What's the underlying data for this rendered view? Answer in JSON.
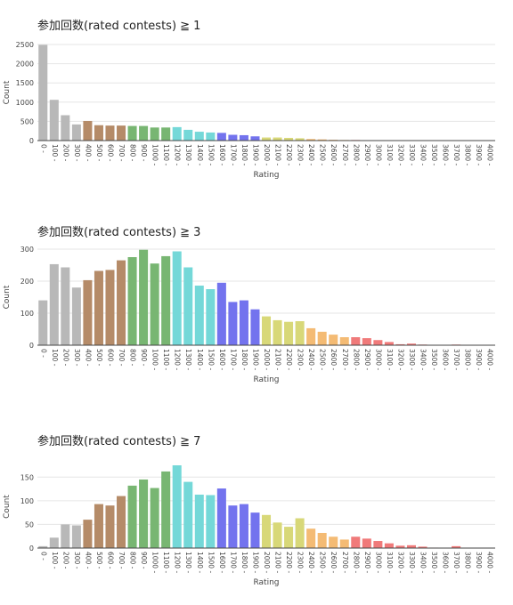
{
  "chart_data": [
    {
      "type": "bar",
      "title": "参加回数(rated contests) ≧ 1",
      "xlabel": "Rating",
      "ylabel": "Count",
      "ylim": [
        0,
        2500
      ],
      "yticks": [
        0,
        500,
        1000,
        1500,
        2000,
        2500
      ],
      "grid": true,
      "categories": [
        "0 -",
        "100 -",
        "200 -",
        "300 -",
        "400 -",
        "500 -",
        "600 -",
        "700 -",
        "800 -",
        "900 -",
        "1000 -",
        "1100 -",
        "1200 -",
        "1300 -",
        "1400 -",
        "1500 -",
        "1600 -",
        "1700 -",
        "1800 -",
        "1900 -",
        "2000 -",
        "2100 -",
        "2200 -",
        "2300 -",
        "2400 -",
        "2500 -",
        "2600 -",
        "2700 -",
        "2800 -",
        "2900 -",
        "3000 -",
        "3100 -",
        "3200 -",
        "3300 -",
        "3400 -",
        "3500 -",
        "3600 -",
        "3700 -",
        "3800 -",
        "3900 -",
        "4000 -"
      ],
      "values": [
        2490,
        1060,
        660,
        420,
        510,
        400,
        390,
        390,
        380,
        380,
        340,
        340,
        350,
        280,
        230,
        210,
        200,
        150,
        140,
        110,
        80,
        80,
        70,
        60,
        40,
        30,
        20,
        15,
        15,
        10,
        10,
        8,
        5,
        5,
        3,
        2,
        1,
        3,
        1,
        1,
        0
      ]
    },
    {
      "type": "bar",
      "title": "参加回数(rated contests) ≧ 3",
      "xlabel": "Rating",
      "ylabel": "Count",
      "ylim": [
        0,
        300
      ],
      "yticks": [
        0,
        100,
        200,
        300
      ],
      "grid": true,
      "categories": [
        "0 -",
        "100 -",
        "200 -",
        "300 -",
        "400 -",
        "500 -",
        "600 -",
        "700 -",
        "800 -",
        "900 -",
        "1000 -",
        "1100 -",
        "1200 -",
        "1300 -",
        "1400 -",
        "1500 -",
        "1600 -",
        "1700 -",
        "1800 -",
        "1900 -",
        "2000 -",
        "2100 -",
        "2200 -",
        "2300 -",
        "2400 -",
        "2500 -",
        "2600 -",
        "2700 -",
        "2800 -",
        "2900 -",
        "3000 -",
        "3100 -",
        "3200 -",
        "3300 -",
        "3400 -",
        "3500 -",
        "3600 -",
        "3700 -",
        "3800 -",
        "3900 -",
        "4000 -"
      ],
      "values": [
        140,
        253,
        243,
        180,
        203,
        232,
        235,
        265,
        275,
        298,
        255,
        278,
        293,
        243,
        186,
        175,
        195,
        135,
        140,
        112,
        90,
        78,
        73,
        75,
        53,
        42,
        33,
        25,
        25,
        22,
        16,
        10,
        3,
        5,
        2,
        0,
        0,
        2,
        0,
        0,
        0
      ]
    },
    {
      "type": "bar",
      "title": "参加回数(rated contests) ≧ 7",
      "xlabel": "Rating",
      "ylabel": "Count",
      "ylim": [
        0,
        175
      ],
      "yticks": [
        0,
        50,
        100,
        150
      ],
      "grid": true,
      "categories": [
        "0 -",
        "100 -",
        "200 -",
        "300 -",
        "400 -",
        "500 -",
        "600 -",
        "700 -",
        "800 -",
        "900 -",
        "1000 -",
        "1100 -",
        "1200 -",
        "1300 -",
        "1400 -",
        "1500 -",
        "1600 -",
        "1700 -",
        "1800 -",
        "1900 -",
        "2000 -",
        "2100 -",
        "2200 -",
        "2300 -",
        "2400 -",
        "2500 -",
        "2600 -",
        "2700 -",
        "2800 -",
        "2900 -",
        "3000 -",
        "3100 -",
        "3200 -",
        "3300 -",
        "3400 -",
        "3500 -",
        "3600 -",
        "3700 -",
        "3800 -",
        "3900 -",
        "4000 -"
      ],
      "values": [
        4,
        22,
        50,
        48,
        60,
        93,
        90,
        110,
        132,
        145,
        127,
        162,
        175,
        140,
        113,
        112,
        126,
        90,
        93,
        75,
        70,
        54,
        45,
        63,
        41,
        32,
        24,
        18,
        24,
        20,
        15,
        10,
        5,
        6,
        3,
        1,
        0,
        4,
        0,
        0,
        0
      ]
    }
  ],
  "colors": {
    "gray": "#b8b8b8",
    "brown": "#b58b68",
    "green": "#78b672",
    "cyan": "#74d8d8",
    "blue": "#7373ee",
    "yellow": "#d8d878",
    "orange": "#f4bb74",
    "red": "#f07a7a"
  }
}
